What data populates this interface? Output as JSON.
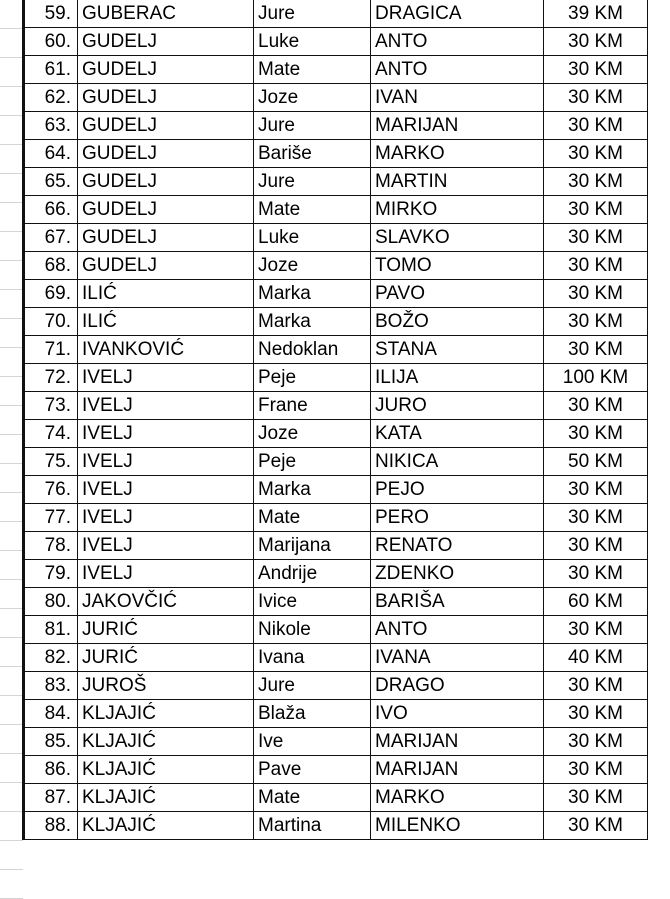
{
  "rows": [
    {
      "no": "59.",
      "surname": "GUBERAC",
      "father": "Jure",
      "name": "DRAGICA",
      "amount": "39 KM"
    },
    {
      "no": "60.",
      "surname": "GUDELJ",
      "father": "Luke",
      "name": "ANTO",
      "amount": "30 KM"
    },
    {
      "no": "61.",
      "surname": "GUDELJ",
      "father": "Mate",
      "name": "ANTO",
      "amount": "30 KM"
    },
    {
      "no": "62.",
      "surname": "GUDELJ",
      "father": "Joze",
      "name": "IVAN",
      "amount": "30 KM"
    },
    {
      "no": "63.",
      "surname": "GUDELJ",
      "father": "Jure",
      "name": "MARIJAN",
      "amount": "30 KM"
    },
    {
      "no": "64.",
      "surname": "GUDELJ",
      "father": "Bariše",
      "name": "MARKO",
      "amount": "30 KM"
    },
    {
      "no": "65.",
      "surname": "GUDELJ",
      "father": "Jure",
      "name": "MARTIN",
      "amount": "30 KM"
    },
    {
      "no": "66.",
      "surname": "GUDELJ",
      "father": "Mate",
      "name": "MIRKO",
      "amount": "30 KM"
    },
    {
      "no": "67.",
      "surname": "GUDELJ",
      "father": "Luke",
      "name": "SLAVKO",
      "amount": "30 KM"
    },
    {
      "no": "68.",
      "surname": "GUDELJ",
      "father": "Joze",
      "name": "TOMO",
      "amount": "30 KM"
    },
    {
      "no": "69.",
      "surname": "ILIĆ",
      "father": "Marka",
      "name": "PAVO",
      "amount": "30 KM"
    },
    {
      "no": "70.",
      "surname": "ILIĆ",
      "father": "Marka",
      "name": "BOŽO",
      "amount": "30 KM"
    },
    {
      "no": "71.",
      "surname": "IVANKOVIĆ",
      "father": "Nedoklan",
      "name": "STANA",
      "amount": "30 KM"
    },
    {
      "no": "72.",
      "surname": "IVELJ",
      "father": "Peje",
      "name": "ILIJA",
      "amount": "100 KM"
    },
    {
      "no": "73.",
      "surname": "IVELJ",
      "father": "Frane",
      "name": "JURO",
      "amount": "30 KM"
    },
    {
      "no": "74.",
      "surname": "IVELJ",
      "father": "Joze",
      "name": "KATA",
      "amount": "30 KM"
    },
    {
      "no": "75.",
      "surname": "IVELJ",
      "father": "Peje",
      "name": "NIKICA",
      "amount": "50 KM"
    },
    {
      "no": "76.",
      "surname": "IVELJ",
      "father": "Marka",
      "name": "PEJO",
      "amount": "30 KM"
    },
    {
      "no": "77.",
      "surname": "IVELJ",
      "father": "Mate",
      "name": "PERO",
      "amount": "30 KM"
    },
    {
      "no": "78.",
      "surname": "IVELJ",
      "father": "Marijana",
      "name": "RENATO",
      "amount": "30 KM"
    },
    {
      "no": "79.",
      "surname": "IVELJ",
      "father": "Andrije",
      "name": "ZDENKO",
      "amount": "30 KM"
    },
    {
      "no": "80.",
      "surname": "JAKOVČIĆ",
      "father": "Ivice",
      "name": "BARIŠA",
      "amount": "60 KM"
    },
    {
      "no": "81.",
      "surname": "JURIĆ",
      "father": "Nikole",
      "name": "ANTO",
      "amount": "30 KM"
    },
    {
      "no": "82.",
      "surname": "JURIĆ",
      "father": "Ivana",
      "name": "IVANA",
      "amount": "40 KM"
    },
    {
      "no": "83.",
      "surname": "JUROŠ",
      "father": "Jure",
      "name": "DRAGO",
      "amount": "30 KM"
    },
    {
      "no": "84.",
      "surname": "KLJAJIĆ",
      "father": "Blaža",
      "name": "IVO",
      "amount": "30 KM"
    },
    {
      "no": "85.",
      "surname": "KLJAJIĆ",
      "father": "Ive",
      "name": "MARIJAN",
      "amount": "30 KM"
    },
    {
      "no": "86.",
      "surname": "KLJAJIĆ",
      "father": "Pave",
      "name": "MARIJAN",
      "amount": "30 KM"
    },
    {
      "no": "87.",
      "surname": "KLJAJIĆ",
      "father": "Mate",
      "name": "MARKO",
      "amount": "30 KM"
    },
    {
      "no": "88.",
      "surname": "KLJAJIĆ",
      "father": "Martina",
      "name": "MILENKO",
      "amount": "30 KM"
    }
  ]
}
